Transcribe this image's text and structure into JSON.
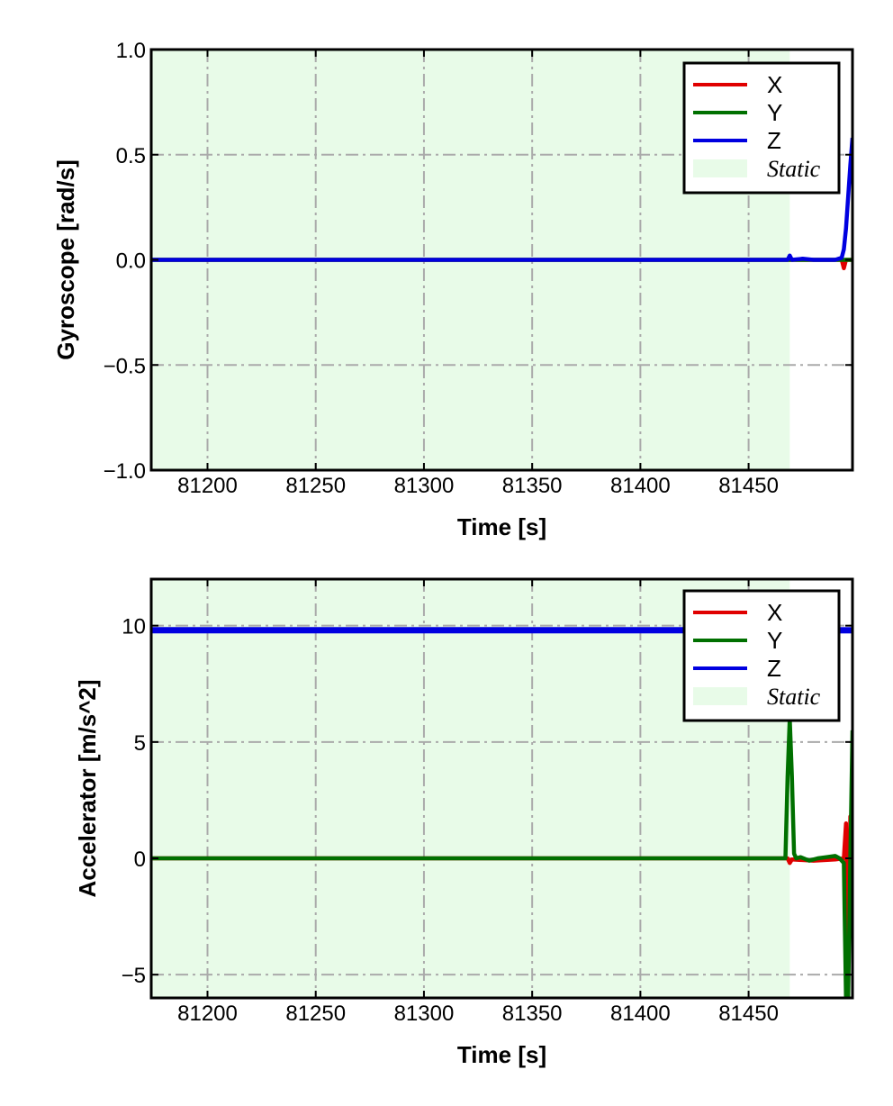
{
  "chart_data": [
    {
      "type": "line",
      "xlabel": "Time [s]",
      "ylabel": "Gyroscope [rad/s]",
      "xlim": [
        81174,
        81498
      ],
      "ylim": [
        -1.0,
        1.0
      ],
      "xticks": [
        81200,
        81250,
        81300,
        81350,
        81400,
        81450
      ],
      "xtick_labels": [
        "81200",
        "81250",
        "81300",
        "81350",
        "81400",
        "81450"
      ],
      "yticks": [
        1.0,
        0.5,
        0.0,
        -0.5,
        -1.0
      ],
      "ytick_labels": [
        "1.0",
        "0.5",
        "0.0",
        "−0.5",
        "−1.0"
      ],
      "grid": true,
      "legend_position": "top-right",
      "static_region": {
        "label": "Static",
        "x_start": 81174,
        "x_end": 81469,
        "color": "#e8fbe8"
      },
      "series": [
        {
          "name": "X",
          "color": "#e00000",
          "x": [
            81174,
            81200,
            81250,
            81300,
            81350,
            81400,
            81450,
            81469,
            81480,
            81490,
            81493,
            81494,
            81495,
            81496,
            81498
          ],
          "y": [
            0.0,
            0.0,
            0.0,
            0.0,
            0.0,
            0.0,
            0.0,
            0.0,
            0.0,
            0.0,
            0.0,
            -0.04,
            0.0,
            0.0,
            0.0
          ]
        },
        {
          "name": "Y",
          "color": "#007000",
          "x": [
            81174,
            81200,
            81250,
            81300,
            81350,
            81400,
            81450,
            81469,
            81480,
            81490,
            81493,
            81494,
            81495,
            81496,
            81498
          ],
          "y": [
            0.0,
            0.0,
            0.0,
            0.0,
            0.0,
            0.0,
            0.0,
            0.0,
            0.0,
            0.0,
            0.0,
            0.0,
            0.0,
            0.0,
            0.0
          ]
        },
        {
          "name": "Z",
          "color": "#0000e0",
          "x": [
            81174,
            81200,
            81250,
            81300,
            81350,
            81400,
            81450,
            81468,
            81469,
            81470,
            81475,
            81480,
            81490,
            81493,
            81494,
            81495,
            81496,
            81497,
            81498
          ],
          "y": [
            0.0,
            0.0,
            0.0,
            0.0,
            0.0,
            0.0,
            0.0,
            0.0,
            0.02,
            0.0,
            0.005,
            0.0,
            0.0,
            0.01,
            0.05,
            0.15,
            0.3,
            0.45,
            0.58
          ]
        }
      ]
    },
    {
      "type": "line",
      "xlabel": "Time [s]",
      "ylabel": "Accelerator [m/s^2]",
      "xlim": [
        81174,
        81498
      ],
      "ylim": [
        -6,
        12
      ],
      "xticks": [
        81200,
        81250,
        81300,
        81350,
        81400,
        81450
      ],
      "xtick_labels": [
        "81200",
        "81250",
        "81300",
        "81350",
        "81400",
        "81450"
      ],
      "yticks": [
        10,
        5,
        0,
        -5
      ],
      "ytick_labels": [
        "10",
        "5",
        "0",
        "−5"
      ],
      "grid": true,
      "legend_position": "top-right",
      "static_region": {
        "label": "Static",
        "x_start": 81174,
        "x_end": 81469,
        "color": "#e8fbe8"
      },
      "series": [
        {
          "name": "X",
          "color": "#e00000",
          "x": [
            81174,
            81200,
            81250,
            81300,
            81350,
            81400,
            81450,
            81468,
            81469,
            81470,
            81480,
            81490,
            81494,
            81495,
            81496,
            81497,
            81498
          ],
          "y": [
            0.0,
            0.0,
            0.0,
            0.0,
            0.0,
            0.0,
            0.0,
            0.0,
            -0.2,
            -0.05,
            -0.1,
            -0.05,
            0.0,
            1.5,
            -5.0,
            1.8,
            0.0
          ]
        },
        {
          "name": "Y",
          "color": "#007000",
          "x": [
            81174,
            81200,
            81250,
            81300,
            81350,
            81400,
            81450,
            81467,
            81468,
            81469,
            81470,
            81471,
            81472,
            81474,
            81478,
            81482,
            81486,
            81490,
            81492,
            81494,
            81495,
            81496,
            81497,
            81498
          ],
          "y": [
            0.0,
            0.0,
            0.0,
            0.0,
            0.0,
            0.0,
            0.0,
            0.0,
            3.5,
            6.0,
            3.5,
            0.2,
            0.0,
            0.05,
            -0.1,
            0.0,
            0.05,
            0.1,
            0.0,
            -0.2,
            -6.0,
            -6.0,
            0.0,
            5.5
          ]
        },
        {
          "name": "Z",
          "color": "#0000e0",
          "x": [
            81174,
            81200,
            81250,
            81300,
            81350,
            81400,
            81450,
            81465
          ],
          "y": [
            9.8,
            9.8,
            9.8,
            9.8,
            9.8,
            9.8,
            9.8,
            9.8
          ],
          "x2": [
            81492,
            81498
          ],
          "y2": [
            9.8,
            9.8
          ]
        }
      ]
    }
  ]
}
